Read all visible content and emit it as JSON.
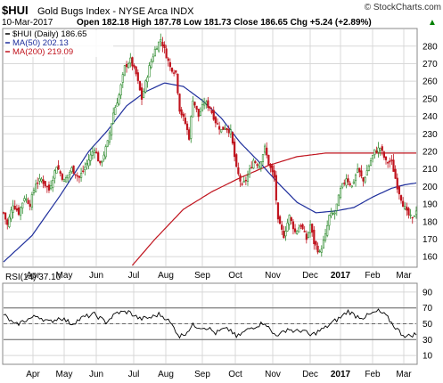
{
  "header": {
    "symbol": "$HUI",
    "name": "Gold Bugs Index - NYSE Arca",
    "exchange": "INDX",
    "watermark": "© StockCharts.com",
    "date": "10-Mar-2017",
    "ohlc_line": "Open 182.18  High 187.78  Low 181.73  Close 186.65  Chg +5.24 (+2.89%)",
    "chg_marker": "▲"
  },
  "legend": {
    "price": "$HUI (Daily) 186.65",
    "ma50": "MA(50) 202.13",
    "ma200": "MA(200) 219.09"
  },
  "rsi_legend": "RSI(14) 37.10",
  "colors": {
    "price_up": "#2e8b2e",
    "price_down": "#c0141e",
    "ma50": "#1f2f9c",
    "ma200": "#c0141e",
    "rsi_line": "#000000",
    "grid": "#d8d8d8",
    "accent_up": "#008000"
  },
  "chart_data": [
    {
      "type": "candlestick",
      "title": "$HUI Gold Bugs Index - NYSE Arca INDX",
      "x_ticks": [
        "Apr",
        "May",
        "Jun",
        "Jul",
        "Aug",
        "Sep",
        "Oct",
        "Nov",
        "Dec",
        "2017",
        "Feb",
        "Mar"
      ],
      "y_ticks": [
        160,
        170,
        180,
        190,
        200,
        210,
        220,
        230,
        240,
        250,
        260,
        270,
        280
      ],
      "ylim": [
        155,
        287
      ],
      "series": [
        {
          "name": "$HUI (Daily)",
          "anchors": [
            [
              0,
              185
            ],
            [
              2,
              178
            ],
            [
              5,
              190
            ],
            [
              8,
              185
            ],
            [
              11,
              194
            ],
            [
              14,
              190
            ],
            [
              17,
              202
            ],
            [
              20,
              204
            ],
            [
              24,
              198
            ],
            [
              28,
              212
            ],
            [
              32,
              203
            ],
            [
              36,
              210
            ],
            [
              40,
              205
            ],
            [
              44,
              213
            ],
            [
              48,
              222
            ],
            [
              51,
              212
            ],
            [
              55,
              225
            ],
            [
              58,
              242
            ],
            [
              61,
              252
            ],
            [
              64,
              268
            ],
            [
              67,
              272
            ],
            [
              70,
              264
            ],
            [
              73,
              250
            ],
            [
              77,
              268
            ],
            [
              80,
              278
            ],
            [
              83,
              284
            ],
            [
              85,
              278
            ],
            [
              88,
              268
            ],
            [
              91,
              265
            ],
            [
              93,
              244
            ],
            [
              96,
              236
            ],
            [
              98,
              228
            ],
            [
              100,
              250
            ],
            [
              103,
              240
            ],
            [
              106,
              248
            ],
            [
              109,
              245
            ],
            [
              112,
              237
            ],
            [
              115,
              232
            ],
            [
              117,
              234
            ],
            [
              120,
              231
            ],
            [
              123,
              210
            ],
            [
              126,
              200
            ],
            [
              129,
              206
            ],
            [
              132,
              215
            ],
            [
              135,
              212
            ],
            [
              138,
              222
            ],
            [
              140,
              213
            ],
            [
              143,
              205
            ],
            [
              145,
              180
            ],
            [
              148,
              172
            ],
            [
              151,
              183
            ],
            [
              154,
              174
            ],
            [
              157,
              178
            ],
            [
              160,
              170
            ],
            [
              162,
              178
            ],
            [
              164,
              168
            ],
            [
              167,
              162
            ],
            [
              170,
              172
            ],
            [
              172,
              183
            ],
            [
              175,
              185
            ],
            [
              178,
              198
            ],
            [
              181,
              205
            ],
            [
              184,
              200
            ],
            [
              187,
              210
            ],
            [
              190,
              203
            ],
            [
              193,
              212
            ],
            [
              196,
              220
            ],
            [
              199,
              222
            ],
            [
              202,
              214
            ],
            [
              205,
              214
            ],
            [
              208,
              200
            ],
            [
              211,
              190
            ],
            [
              213,
              185
            ],
            [
              216,
              181
            ],
            [
              218,
              187
            ]
          ]
        },
        {
          "name": "MA(50)",
          "anchors": [
            [
              0,
              157
            ],
            [
              15,
              172
            ],
            [
              30,
              195
            ],
            [
              45,
              220
            ],
            [
              55,
              232
            ],
            [
              65,
              246
            ],
            [
              75,
              254
            ],
            [
              85,
              259
            ],
            [
              95,
              257
            ],
            [
              105,
              249
            ],
            [
              115,
              239
            ],
            [
              125,
              225
            ],
            [
              135,
              214
            ],
            [
              145,
              202
            ],
            [
              155,
              191
            ],
            [
              165,
              185
            ],
            [
              175,
              186
            ],
            [
              185,
              188
            ],
            [
              195,
              194
            ],
            [
              205,
              199
            ],
            [
              212,
              201
            ],
            [
              218,
              202
            ]
          ]
        },
        {
          "name": "MA(200)",
          "anchors": [
            [
              68,
              155
            ],
            [
              80,
              170
            ],
            [
              95,
              187
            ],
            [
              110,
              197
            ],
            [
              125,
              205
            ],
            [
              140,
              212
            ],
            [
              155,
              217
            ],
            [
              170,
              219
            ],
            [
              190,
              219
            ],
            [
              205,
              219
            ],
            [
              218,
              219
            ]
          ]
        }
      ]
    },
    {
      "type": "line",
      "title": "RSI(14)",
      "x_ticks": [
        "Apr",
        "May",
        "Jun",
        "Jul",
        "Aug",
        "Sep",
        "Oct",
        "Nov",
        "Dec",
        "2017",
        "Feb",
        "Mar"
      ],
      "y_ticks": [
        10,
        30,
        50,
        70,
        90
      ],
      "ylim": [
        0,
        100
      ],
      "reference_lines": [
        30,
        50,
        70
      ],
      "series": [
        {
          "name": "RSI(14)",
          "anchors": [
            [
              0,
              62
            ],
            [
              6,
              48
            ],
            [
              12,
              55
            ],
            [
              18,
              60
            ],
            [
              24,
              52
            ],
            [
              30,
              58
            ],
            [
              36,
              50
            ],
            [
              42,
              58
            ],
            [
              48,
              62
            ],
            [
              54,
              52
            ],
            [
              60,
              64
            ],
            [
              66,
              65
            ],
            [
              72,
              56
            ],
            [
              78,
              58
            ],
            [
              82,
              62
            ],
            [
              86,
              57
            ],
            [
              90,
              45
            ],
            [
              93,
              34
            ],
            [
              96,
              38
            ],
            [
              100,
              48
            ],
            [
              104,
              46
            ],
            [
              108,
              45
            ],
            [
              112,
              38
            ],
            [
              116,
              43
            ],
            [
              120,
              42
            ],
            [
              123,
              33
            ],
            [
              126,
              38
            ],
            [
              130,
              44
            ],
            [
              134,
              48
            ],
            [
              138,
              52
            ],
            [
              142,
              38
            ],
            [
              146,
              36
            ],
            [
              150,
              44
            ],
            [
              154,
              40
            ],
            [
              158,
              42
            ],
            [
              162,
              35
            ],
            [
              166,
              40
            ],
            [
              170,
              45
            ],
            [
              174,
              52
            ],
            [
              178,
              58
            ],
            [
              182,
              66
            ],
            [
              186,
              60
            ],
            [
              190,
              58
            ],
            [
              194,
              62
            ],
            [
              198,
              66
            ],
            [
              202,
              60
            ],
            [
              206,
              48
            ],
            [
              210,
              38
            ],
            [
              213,
              34
            ],
            [
              216,
              36
            ],
            [
              218,
              37
            ]
          ]
        }
      ]
    }
  ]
}
